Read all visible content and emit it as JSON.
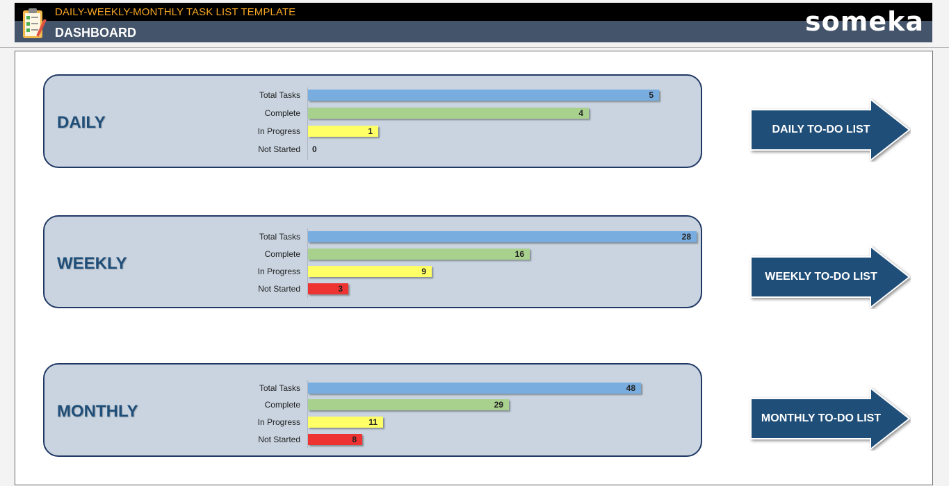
{
  "header": {
    "app_title": "DAILY-WEEKLY-MONTHLY TASK LIST TEMPLATE",
    "page_title": "DASHBOARD",
    "brand": "someka",
    "app_icon": "clipboard-checklist-icon"
  },
  "colors": {
    "header_black": "#000000",
    "header_slate": "#44546a",
    "title_orange": "#f5a623",
    "panel_fill": "#c9d4e0",
    "panel_border": "#203864",
    "panel_title": "#1f4e79",
    "arrow_fill": "#1f4e79",
    "total": "#7aaddf",
    "complete": "#a9d18e",
    "in_progress": "#ffff66",
    "not_started": "#ee3333"
  },
  "panels": [
    {
      "title": "DAILY",
      "button_label": "DAILY TO-DO LIST",
      "rows": [
        {
          "label": "Total Tasks",
          "value": "5"
        },
        {
          "label": "Complete",
          "value": "4"
        },
        {
          "label": "In Progress",
          "value": "1"
        },
        {
          "label": "Not Started",
          "value": "0"
        }
      ]
    },
    {
      "title": "WEEKLY",
      "button_label": "WEEKLY TO-DO LIST",
      "rows": [
        {
          "label": "Total Tasks",
          "value": "28"
        },
        {
          "label": "Complete",
          "value": "16"
        },
        {
          "label": "In Progress",
          "value": "9"
        },
        {
          "label": "Not Started",
          "value": "3"
        }
      ]
    },
    {
      "title": "MONTHLY",
      "button_label": "MONTHLY TO-DO LIST",
      "rows": [
        {
          "label": "Total Tasks",
          "value": "48"
        },
        {
          "label": "Complete",
          "value": "29"
        },
        {
          "label": "In Progress",
          "value": "11"
        },
        {
          "label": "Not Started",
          "value": "8"
        }
      ]
    }
  ]
}
